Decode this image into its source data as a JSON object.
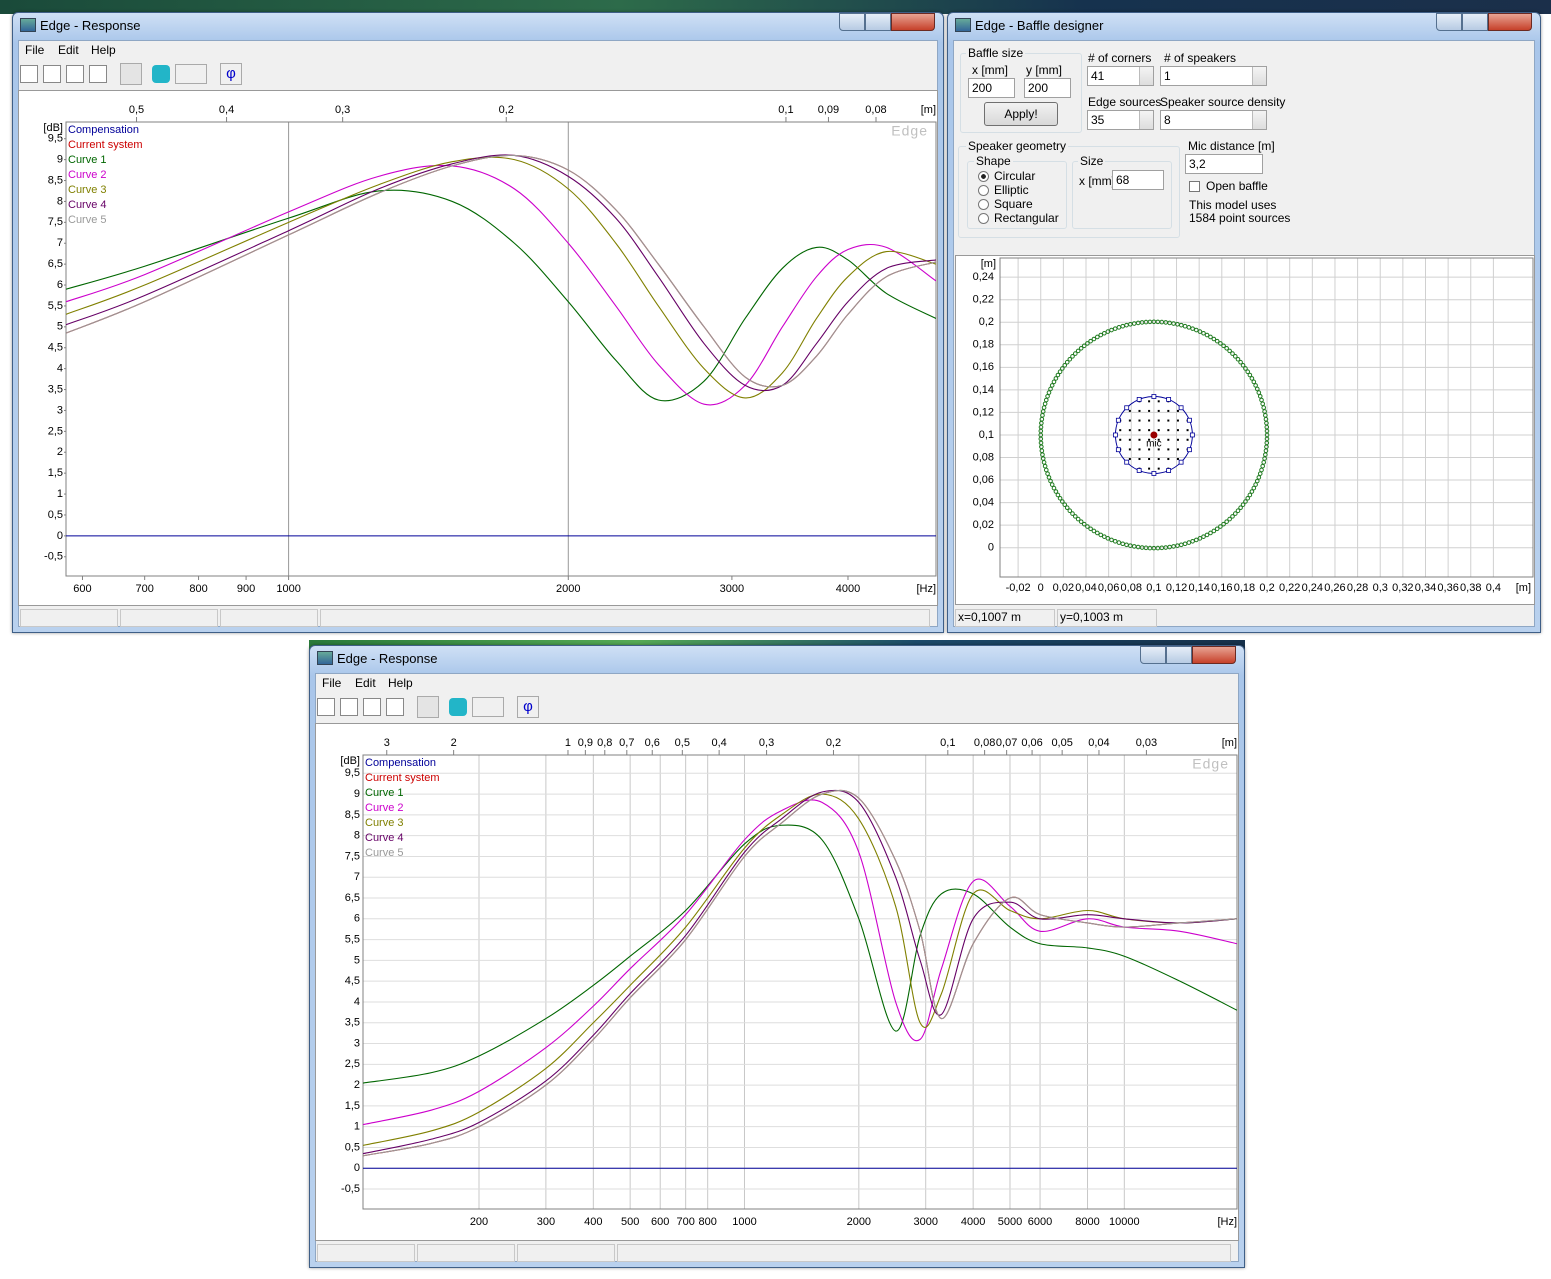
{
  "windows": [
    {
      "title": "Edge - Response",
      "menu": [
        "File",
        "Edit",
        "Help"
      ],
      "toolbar_phi": "φ",
      "plot": {
        "log_x": true,
        "y_unit": "[dB]",
        "x_unit": "[Hz]",
        "top_unit": "[m]",
        "watermark": "Edge",
        "xlim": [
          576,
          4975
        ],
        "ylim": [
          -0.96,
          9.9
        ],
        "xticks": [
          600,
          700,
          800,
          900,
          1000,
          2000,
          3000,
          4000
        ],
        "xgrid": [
          1000,
          2000
        ],
        "yticks": [
          {
            "value": -0.5,
            "label": "-0,5"
          },
          0,
          {
            "value": 0.5,
            "label": "0,5"
          },
          1,
          {
            "value": 1.5,
            "label": "1,5"
          },
          2,
          {
            "value": 2.5,
            "label": "2,5"
          },
          3,
          {
            "value": 3.5,
            "label": "3,5"
          },
          4,
          {
            "value": 4.5,
            "label": "4,5"
          },
          5,
          {
            "value": 5.5,
            "label": "5,5"
          },
          6,
          {
            "value": 6.5,
            "label": "6,5"
          },
          7,
          {
            "value": 7.5,
            "label": "7,5"
          },
          8,
          {
            "value": 8.5,
            "label": "8,5"
          },
          9,
          {
            "value": 9.5,
            "label": "9,5"
          }
        ],
        "top_ticks": [
          {
            "value": 0.5,
            "label": "0,5"
          },
          {
            "value": 0.4,
            "label": "0,4"
          },
          {
            "value": 0.3,
            "label": "0,3"
          },
          {
            "value": 0.2,
            "label": "0,2"
          },
          {
            "value": 0.1,
            "label": "0,1"
          },
          {
            "value": 0.09,
            "label": "0,09"
          },
          {
            "value": 0.08,
            "label": "0,08"
          }
        ],
        "x": [
          576,
          700,
          1000,
          1250,
          1500,
          1750,
          2000,
          2250,
          2500,
          2800,
          3100,
          3400,
          3700,
          4000,
          4400,
          4975
        ],
        "series": [
          {
            "name": "Compensation",
            "color": "#000099",
            "values": [
              0,
              0,
              0,
              0,
              0,
              0,
              0,
              0,
              0,
              0,
              0,
              0,
              0,
              0,
              0,
              0
            ]
          },
          {
            "name": "Current system",
            "color": "#cc0000",
            "values": [
              4.85,
              5.6,
              7.2,
              8.2,
              8.85,
              9.1,
              8.75,
              7.8,
              6.5,
              5.0,
              3.8,
              3.6,
              4.3,
              5.3,
              6.2,
              6.55
            ]
          },
          {
            "name": "Curve 1",
            "color": "#006600",
            "values": [
              5.9,
              6.45,
              7.6,
              8.25,
              8.0,
              7.0,
              5.6,
              4.2,
              3.25,
              3.7,
              5.2,
              6.4,
              6.9,
              6.6,
              5.8,
              5.2
            ]
          },
          {
            "name": "Curve 2",
            "color": "#cc00cc",
            "values": [
              5.6,
              6.25,
              7.75,
              8.6,
              8.85,
              8.3,
              7.0,
              5.5,
              4.1,
              3.15,
              3.6,
              5.0,
              6.2,
              6.85,
              6.9,
              6.1
            ]
          },
          {
            "name": "Curve 3",
            "color": "#808000",
            "values": [
              5.3,
              6.0,
              7.5,
              8.4,
              8.95,
              9.0,
              8.3,
              7.0,
              5.5,
              4.0,
              3.3,
              3.9,
              5.2,
              6.2,
              6.8,
              6.5
            ]
          },
          {
            "name": "Curve 4",
            "color": "#660066",
            "values": [
              5.05,
              5.75,
              7.3,
              8.3,
              8.9,
              9.1,
              8.6,
              7.6,
              6.2,
              4.6,
              3.6,
              3.6,
              4.6,
              5.6,
              6.4,
              6.6
            ]
          },
          {
            "name": "Curve 5",
            "color": "#999999",
            "values": [
              4.85,
              5.6,
              7.2,
              8.2,
              8.85,
              9.1,
              8.75,
              7.8,
              6.5,
              5.0,
              3.8,
              3.6,
              4.3,
              5.3,
              6.2,
              6.55
            ]
          }
        ]
      }
    },
    {
      "title": "Edge - Baffle designer",
      "baffle_size": {
        "label": "Baffle size",
        "x_label": "x [mm]",
        "x": 200,
        "y_label": "y [mm]",
        "y": 200,
        "apply": "Apply!"
      },
      "corners": {
        "label": "# of corners",
        "value": 41
      },
      "speakers": {
        "label": "# of speakers",
        "value": 1
      },
      "edge_sources": {
        "label": "Edge sources",
        "value": 35
      },
      "density": {
        "label": "Speaker source density",
        "value": 8
      },
      "geometry": {
        "label": "Speaker geometry",
        "shape_label": "Shape",
        "shapes": [
          "Circular",
          "Elliptic",
          "Square",
          "Rectangular"
        ],
        "selected": 0,
        "size_label": "Size",
        "size_x_label": "x [mm]",
        "size_x": 68
      },
      "mic": {
        "label": "Mic distance [m]",
        "value": "3,2",
        "open_baffle": "Open baffle",
        "open_checked": false
      },
      "info": [
        "This model uses",
        "1584 point sources"
      ],
      "plot": {
        "unit": "[m]",
        "mic_label": "mic",
        "xlim": [
          -0.036,
          0.435
        ],
        "ylim": [
          -0.026,
          0.257
        ],
        "xticks": [
          {
            "value": -0.02,
            "label": "-0,02"
          },
          0,
          {
            "value": 0.02,
            "label": "0,02"
          },
          {
            "value": 0.04,
            "label": "0,04"
          },
          {
            "value": 0.06,
            "label": "0,06"
          },
          {
            "value": 0.08,
            "label": "0,08"
          },
          {
            "value": 0.1,
            "label": "0,1"
          },
          {
            "value": 0.12,
            "label": "0,12"
          },
          {
            "value": 0.14,
            "label": "0,14"
          },
          {
            "value": 0.16,
            "label": "0,16"
          },
          {
            "value": 0.18,
            "label": "0,18"
          },
          {
            "value": 0.2,
            "label": "0,2"
          },
          {
            "value": 0.22,
            "label": "0,22"
          },
          {
            "value": 0.24,
            "label": "0,24"
          },
          {
            "value": 0.26,
            "label": "0,26"
          },
          {
            "value": 0.28,
            "label": "0,28"
          },
          {
            "value": 0.3,
            "label": "0,3"
          },
          {
            "value": 0.32,
            "label": "0,32"
          },
          {
            "value": 0.34,
            "label": "0,34"
          },
          {
            "value": 0.36,
            "label": "0,36"
          },
          {
            "value": 0.38,
            "label": "0,38"
          },
          {
            "value": 0.4,
            "label": "0,4"
          }
        ],
        "yticks": [
          0,
          {
            "value": 0.02,
            "label": "0,02"
          },
          {
            "value": 0.04,
            "label": "0,04"
          },
          {
            "value": 0.06,
            "label": "0,06"
          },
          {
            "value": 0.08,
            "label": "0,08"
          },
          {
            "value": 0.1,
            "label": "0,1"
          },
          {
            "value": 0.12,
            "label": "0,12"
          },
          {
            "value": 0.14,
            "label": "0,14"
          },
          {
            "value": 0.16,
            "label": "0,16"
          },
          {
            "value": 0.18,
            "label": "0,18"
          },
          {
            "value": 0.2,
            "label": "0,2"
          },
          {
            "value": 0.22,
            "label": "0,22"
          },
          {
            "value": 0.24,
            "label": "0,24"
          }
        ]
      },
      "status": [
        "x=0,1007 m",
        "y=0,1003 m"
      ]
    },
    {
      "title": "Edge - Response",
      "menu": [
        "File",
        "Edit",
        "Help"
      ],
      "toolbar_phi": "φ",
      "plot": {
        "log_x": true,
        "grid": true,
        "y_unit": "[dB]",
        "x_unit": "[Hz]",
        "top_unit": "[m]",
        "watermark": "Edge",
        "xlim": [
          99,
          19800
        ],
        "ylim": [
          -0.98,
          9.94
        ],
        "xticks": [
          200,
          300,
          400,
          500,
          600,
          700,
          800,
          1000,
          2000,
          3000,
          4000,
          5000,
          6000,
          8000,
          10000
        ],
        "yticks": [
          {
            "value": -0.5,
            "label": "-0,5"
          },
          0,
          {
            "value": 0.5,
            "label": "0,5"
          },
          1,
          {
            "value": 1.5,
            "label": "1,5"
          },
          2,
          {
            "value": 2.5,
            "label": "2,5"
          },
          3,
          {
            "value": 3.5,
            "label": "3,5"
          },
          4,
          {
            "value": 4.5,
            "label": "4,5"
          },
          5,
          {
            "value": 5.5,
            "label": "5,5"
          },
          6,
          {
            "value": 6.5,
            "label": "6,5"
          },
          7,
          {
            "value": 7.5,
            "label": "7,5"
          },
          8,
          {
            "value": 8.5,
            "label": "8,5"
          },
          9,
          {
            "value": 9.5,
            "label": "9,5"
          }
        ],
        "top_ticks": [
          3,
          2,
          1,
          {
            "value": 0.9,
            "label": "0,9"
          },
          {
            "value": 0.8,
            "label": "0,8"
          },
          {
            "value": 0.7,
            "label": "0,7"
          },
          {
            "value": 0.6,
            "label": "0,6"
          },
          {
            "value": 0.5,
            "label": "0,5"
          },
          {
            "value": 0.4,
            "label": "0,4"
          },
          {
            "value": 0.3,
            "label": "0,3"
          },
          {
            "value": 0.2,
            "label": "0,2"
          },
          {
            "value": 0.1,
            "label": "0,1"
          },
          {
            "value": 0.08,
            "label": "0,08"
          },
          {
            "value": 0.07,
            "label": "0,07"
          },
          {
            "value": 0.06,
            "label": "0,06"
          },
          {
            "value": 0.05,
            "label": "0,05"
          },
          {
            "value": 0.04,
            "label": "0,04"
          },
          {
            "value": 0.03,
            "label": "0,03"
          }
        ],
        "x": [
          99,
          150,
          200,
          300,
          400,
          500,
          700,
          1000,
          1250,
          1600,
          2000,
          2500,
          2900,
          3300,
          4000,
          5000,
          6000,
          8000,
          10000,
          14000,
          19800
        ],
        "series": [
          {
            "name": "Compensation",
            "color": "#000099",
            "values": [
              0,
              0,
              0,
              0,
              0,
              0,
              0,
              0,
              0,
              0,
              0,
              0,
              0,
              0,
              0,
              0,
              0,
              0,
              0,
              0,
              0
            ]
          },
          {
            "name": "Current system",
            "color": "#cc0000",
            "values": [
              0.3,
              0.6,
              1.0,
              2.0,
              3.1,
              4.1,
              5.5,
              7.5,
              8.3,
              9.0,
              8.9,
              7.4,
              5.7,
              3.6,
              5.4,
              6.5,
              6.1,
              5.9,
              5.8,
              5.9,
              6.0
            ]
          },
          {
            "name": "Curve 1",
            "color": "#006600",
            "values": [
              2.05,
              2.3,
              2.7,
              3.6,
              4.4,
              5.1,
              6.2,
              7.8,
              8.25,
              7.9,
              6.0,
              3.3,
              5.6,
              6.6,
              6.6,
              5.8,
              5.4,
              5.3,
              5.1,
              4.5,
              3.8
            ]
          },
          {
            "name": "Curve 2",
            "color": "#cc00cc",
            "values": [
              1.05,
              1.4,
              1.85,
              2.9,
              3.9,
              4.8,
              6.1,
              7.9,
              8.6,
              8.8,
              7.6,
              4.0,
              3.1,
              4.8,
              6.9,
              6.3,
              5.7,
              6.0,
              5.8,
              5.7,
              5.4
            ]
          },
          {
            "name": "Curve 3",
            "color": "#808000",
            "values": [
              0.55,
              0.9,
              1.35,
              2.4,
              3.5,
              4.4,
              5.8,
              7.7,
              8.5,
              9.0,
              8.4,
              6.3,
              3.5,
              4.2,
              6.6,
              6.2,
              6.0,
              6.2,
              6.0,
              5.9,
              6.0
            ]
          },
          {
            "name": "Curve 4",
            "color": "#660066",
            "values": [
              0.35,
              0.7,
              1.1,
              2.1,
              3.2,
              4.2,
              5.6,
              7.6,
              8.4,
              9.05,
              8.8,
              7.0,
              5.0,
              3.7,
              6.0,
              6.4,
              6.0,
              6.1,
              6.0,
              5.9,
              6.0
            ]
          },
          {
            "name": "Curve 5",
            "color": "#999999",
            "values": [
              0.3,
              0.6,
              1.0,
              2.0,
              3.1,
              4.1,
              5.5,
              7.5,
              8.3,
              9.0,
              8.9,
              7.4,
              5.7,
              3.6,
              5.4,
              6.5,
              6.1,
              5.9,
              5.8,
              5.9,
              6.0
            ]
          }
        ]
      }
    }
  ]
}
